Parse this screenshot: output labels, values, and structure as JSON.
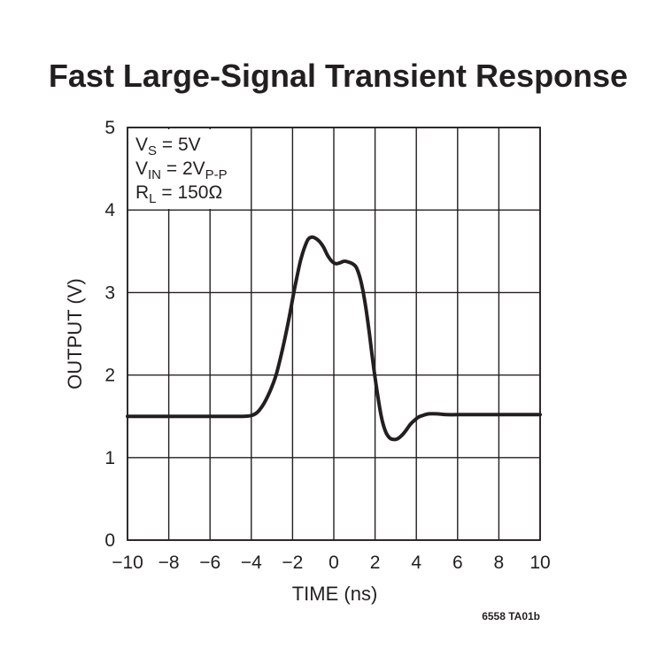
{
  "chart_data": {
    "type": "line",
    "title": "Fast Large-Signal Transient Response",
    "xlabel": "TIME (ns)",
    "ylabel": "OUTPUT (V)",
    "xlim": [
      -10,
      10
    ],
    "ylim": [
      0,
      5
    ],
    "x_ticks": [
      -10,
      -8,
      -6,
      -4,
      -2,
      0,
      2,
      4,
      6,
      8,
      10
    ],
    "x_tick_labels": [
      "−10",
      "−8",
      "−6",
      "−4",
      "−2",
      "0",
      "2",
      "4",
      "6",
      "8",
      "10"
    ],
    "y_ticks": [
      0,
      1,
      2,
      3,
      4,
      5
    ],
    "y_tick_labels": [
      "0",
      "1",
      "2",
      "3",
      "4",
      "5"
    ],
    "grid": true,
    "annotation": {
      "vs": {
        "main": "V",
        "sub": "S",
        "rest": " = 5V"
      },
      "vin": {
        "main": "V",
        "sub": "IN",
        "rest": " = 2V",
        "sub2": "P-P"
      },
      "rl": {
        "main": "R",
        "sub": "L",
        "rest": " = 150Ω"
      }
    },
    "figure_id": "6558 TA01b",
    "series": [
      {
        "x": [
          -10,
          -8,
          -6,
          -5,
          -4.4,
          -4,
          -3.7,
          -3.4,
          -3.1,
          -2.8,
          -2.5,
          -2.2,
          -1.9,
          -1.6,
          -1.3,
          -1.1,
          -0.9,
          -0.7,
          -0.5,
          -0.3,
          -0.1,
          0.1,
          0.3,
          0.5,
          0.7,
          0.9,
          1.1,
          1.3,
          1.5,
          1.7,
          1.9,
          2.1,
          2.3,
          2.5,
          2.7,
          2.9,
          3.1,
          3.3,
          3.5,
          3.7,
          3.9,
          4.1,
          4.3,
          4.6,
          5.0,
          5.5,
          6,
          7,
          8,
          9,
          10
        ],
        "y": [
          1.5,
          1.5,
          1.5,
          1.5,
          1.5,
          1.51,
          1.55,
          1.65,
          1.8,
          2.0,
          2.3,
          2.65,
          3.05,
          3.4,
          3.62,
          3.67,
          3.66,
          3.62,
          3.55,
          3.45,
          3.38,
          3.35,
          3.36,
          3.38,
          3.37,
          3.35,
          3.3,
          3.15,
          2.9,
          2.55,
          2.15,
          1.8,
          1.5,
          1.32,
          1.24,
          1.22,
          1.23,
          1.27,
          1.33,
          1.4,
          1.45,
          1.49,
          1.51,
          1.53,
          1.53,
          1.52,
          1.52,
          1.52,
          1.52,
          1.52,
          1.52
        ]
      }
    ]
  }
}
